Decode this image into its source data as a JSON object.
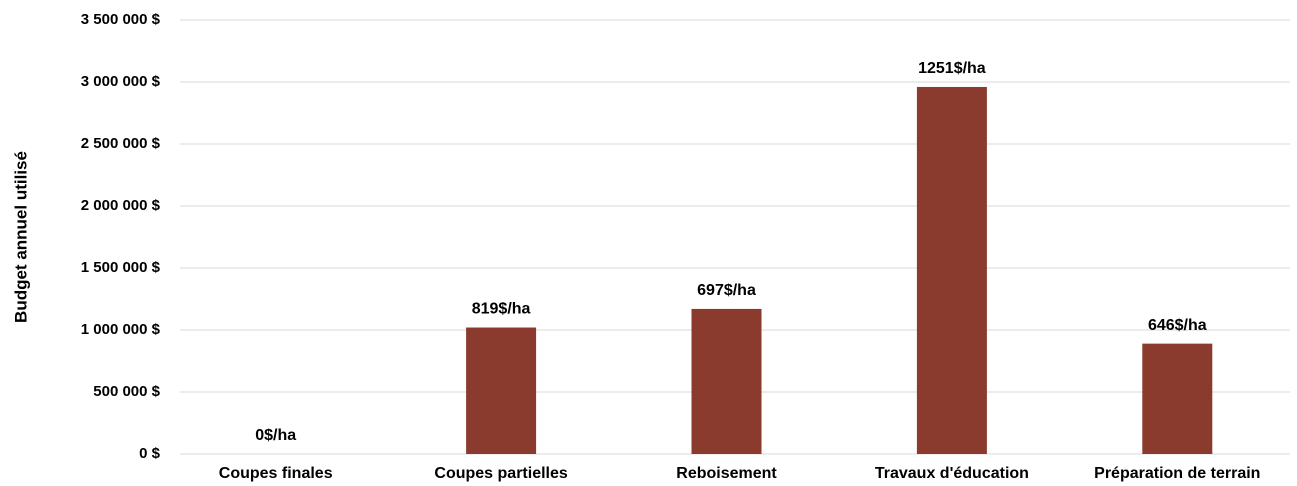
{
  "chart_data": {
    "type": "bar",
    "y_label": "Budget annuel utilisé",
    "categories": [
      "Coupes finales",
      "Coupes partielles",
      "Reboisement",
      "Travaux d'éducation",
      "Préparation de terrain"
    ],
    "values": [
      0,
      1020000,
      1170000,
      2960000,
      890000
    ],
    "annotations": [
      "0$/ha",
      "819$/ha",
      "697$/ha",
      "1251$/ha",
      "646$/ha"
    ],
    "color": "#8b3a2e",
    "ylim": [
      0,
      3500000
    ],
    "yticks": [
      {
        "value": 0,
        "label": "0 $"
      },
      {
        "value": 500000,
        "label": "500 000 $"
      },
      {
        "value": 1000000,
        "label": "1 000 000 $"
      },
      {
        "value": 1500000,
        "label": "1 500 000 $"
      },
      {
        "value": 2000000,
        "label": "2 000 000 $"
      },
      {
        "value": 2500000,
        "label": "2 500 000 $"
      },
      {
        "value": 3000000,
        "label": "3 000 000 $"
      },
      {
        "value": 3500000,
        "label": "3 500 000 $"
      }
    ],
    "grid": true
  }
}
